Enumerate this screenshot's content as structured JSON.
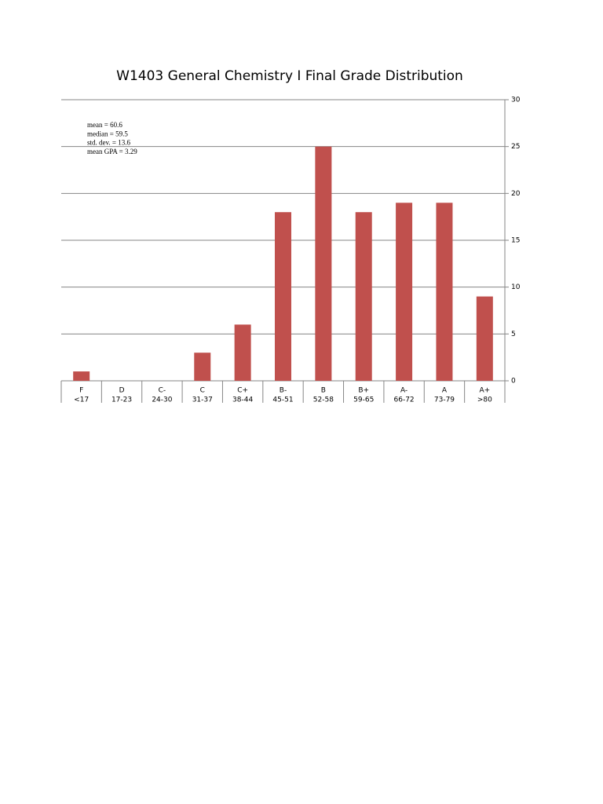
{
  "chart_data": {
    "type": "bar",
    "title": "W1403 General Chemistry I Final Grade Distribution",
    "categories": [
      "F",
      "D",
      "C-",
      "C",
      "C+",
      "B-",
      "B",
      "B+",
      "A-",
      "A",
      "A+"
    ],
    "category_ranges": [
      "<17",
      "17-23",
      "24-30",
      "31-37",
      "38-44",
      "45-51",
      "52-58",
      "59-65",
      "66-72",
      "73-79",
      ">80"
    ],
    "values": [
      1,
      0,
      0,
      3,
      6,
      18,
      25,
      18,
      19,
      19,
      9
    ],
    "color": "#c0504d",
    "ylim": [
      0,
      30
    ],
    "yticks": [
      0,
      5,
      10,
      15,
      20,
      25,
      30
    ],
    "grid": true,
    "annotations": [
      "mean = 60.6",
      "median = 59.5",
      "std. dev. = 13.6",
      "mean GPA = 3.29"
    ]
  }
}
